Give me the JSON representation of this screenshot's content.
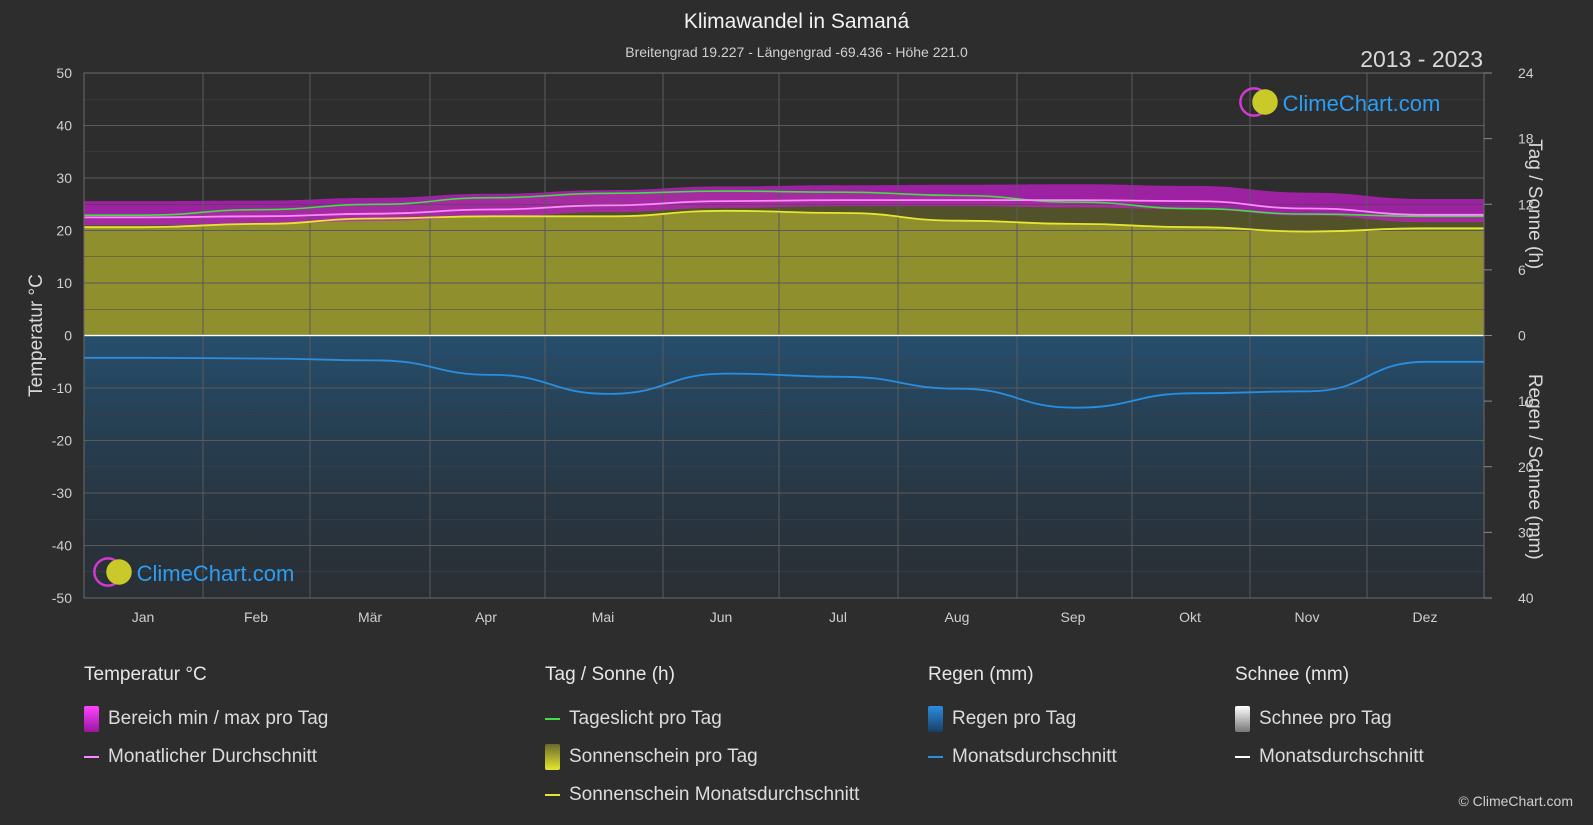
{
  "header": {
    "title": "Klimawandel in Samaná",
    "subtitle": "Breitengrad 19.227 - Längengrad -69.436 - Höhe 221.0",
    "years": "2013 - 2023"
  },
  "brand": {
    "logo_text": "ClimeChart.com",
    "copyright": "© ClimeChart.com"
  },
  "legend": {
    "temperature": {
      "header": "Temperatur °C",
      "range": "Bereich min / max pro Tag",
      "avg": "Monatlicher Durchschnitt"
    },
    "sun": {
      "header": "Tag / Sonne (h)",
      "daylight": "Tageslicht pro Tag",
      "sunshine": "Sonnenschein pro Tag",
      "sunshine_avg": "Sonnenschein Monatsdurchschnitt"
    },
    "rain": {
      "header": "Regen (mm)",
      "per_day": "Regen pro Tag",
      "avg": "Monatsdurchschnitt"
    },
    "snow": {
      "header": "Schnee (mm)",
      "per_day": "Schnee pro Tag",
      "avg": "Monatsdurchschnitt"
    }
  },
  "colors": {
    "background": "#2d2d2d",
    "temp_range": "#c21fc8",
    "temp_avg": "#ff88ff",
    "daylight": "#44dd44",
    "sunshine_fill": "#9a9a2e",
    "sunshine_avg": "#e6e632",
    "rain_fill": "#1f5f8f",
    "rain_avg": "#2a8ee0",
    "snow_avg": "#ffffff",
    "logo_blue": "#2a9df4"
  },
  "chart_data": {
    "type": "area",
    "months": [
      "Jan",
      "Feb",
      "Mär",
      "Apr",
      "Mai",
      "Jun",
      "Jul",
      "Aug",
      "Sep",
      "Okt",
      "Nov",
      "Dez"
    ],
    "y_left": {
      "label": "Temperatur °C",
      "min": -50,
      "max": 50,
      "ticks": [
        50,
        40,
        30,
        20,
        10,
        0,
        -10,
        -20,
        -30,
        -40,
        -50
      ]
    },
    "y_right_top": {
      "label": "Tag / Sonne (h)",
      "min": 0,
      "max": 24,
      "ticks": [
        24,
        18,
        12,
        6,
        0
      ]
    },
    "y_right_bottom": {
      "label": "Regen / Schnee (mm)",
      "min": 0,
      "max": 40,
      "ticks": [
        0,
        10,
        20,
        30,
        40
      ]
    },
    "grid": true,
    "series": [
      {
        "name": "Tageslicht pro Tag",
        "axis": "hours",
        "values": [
          11.0,
          11.5,
          12.0,
          12.6,
          13.0,
          13.2,
          13.1,
          12.8,
          12.2,
          11.6,
          11.1,
          10.9
        ]
      },
      {
        "name": "Sonnenschein Monatsdurchschnitt",
        "axis": "hours",
        "values": [
          9.9,
          10.2,
          10.7,
          10.9,
          10.9,
          11.4,
          11.2,
          10.5,
          10.2,
          9.9,
          9.5,
          9.8
        ]
      },
      {
        "name": "Monatlicher Durchschnitt",
        "axis": "temp",
        "values": [
          22.5,
          22.7,
          23.2,
          24.0,
          24.8,
          25.6,
          25.8,
          25.8,
          25.8,
          25.6,
          24.2,
          23.0
        ]
      },
      {
        "name": "Bereich min / max pro Tag",
        "axis": "temp",
        "min": [
          21.0,
          21.2,
          21.8,
          22.6,
          23.5,
          24.3,
          24.6,
          24.6,
          24.4,
          24.0,
          22.8,
          21.6
        ],
        "max": [
          25.6,
          25.7,
          26.2,
          27.0,
          27.7,
          28.4,
          28.6,
          28.7,
          28.8,
          28.5,
          27.2,
          26.0
        ]
      },
      {
        "name": "Monatsdurchschnitt Regen",
        "axis": "rain",
        "values": [
          3.4,
          3.5,
          3.8,
          6.0,
          8.9,
          5.8,
          6.3,
          8.1,
          11.0,
          8.8,
          8.5,
          4.0
        ]
      }
    ]
  }
}
